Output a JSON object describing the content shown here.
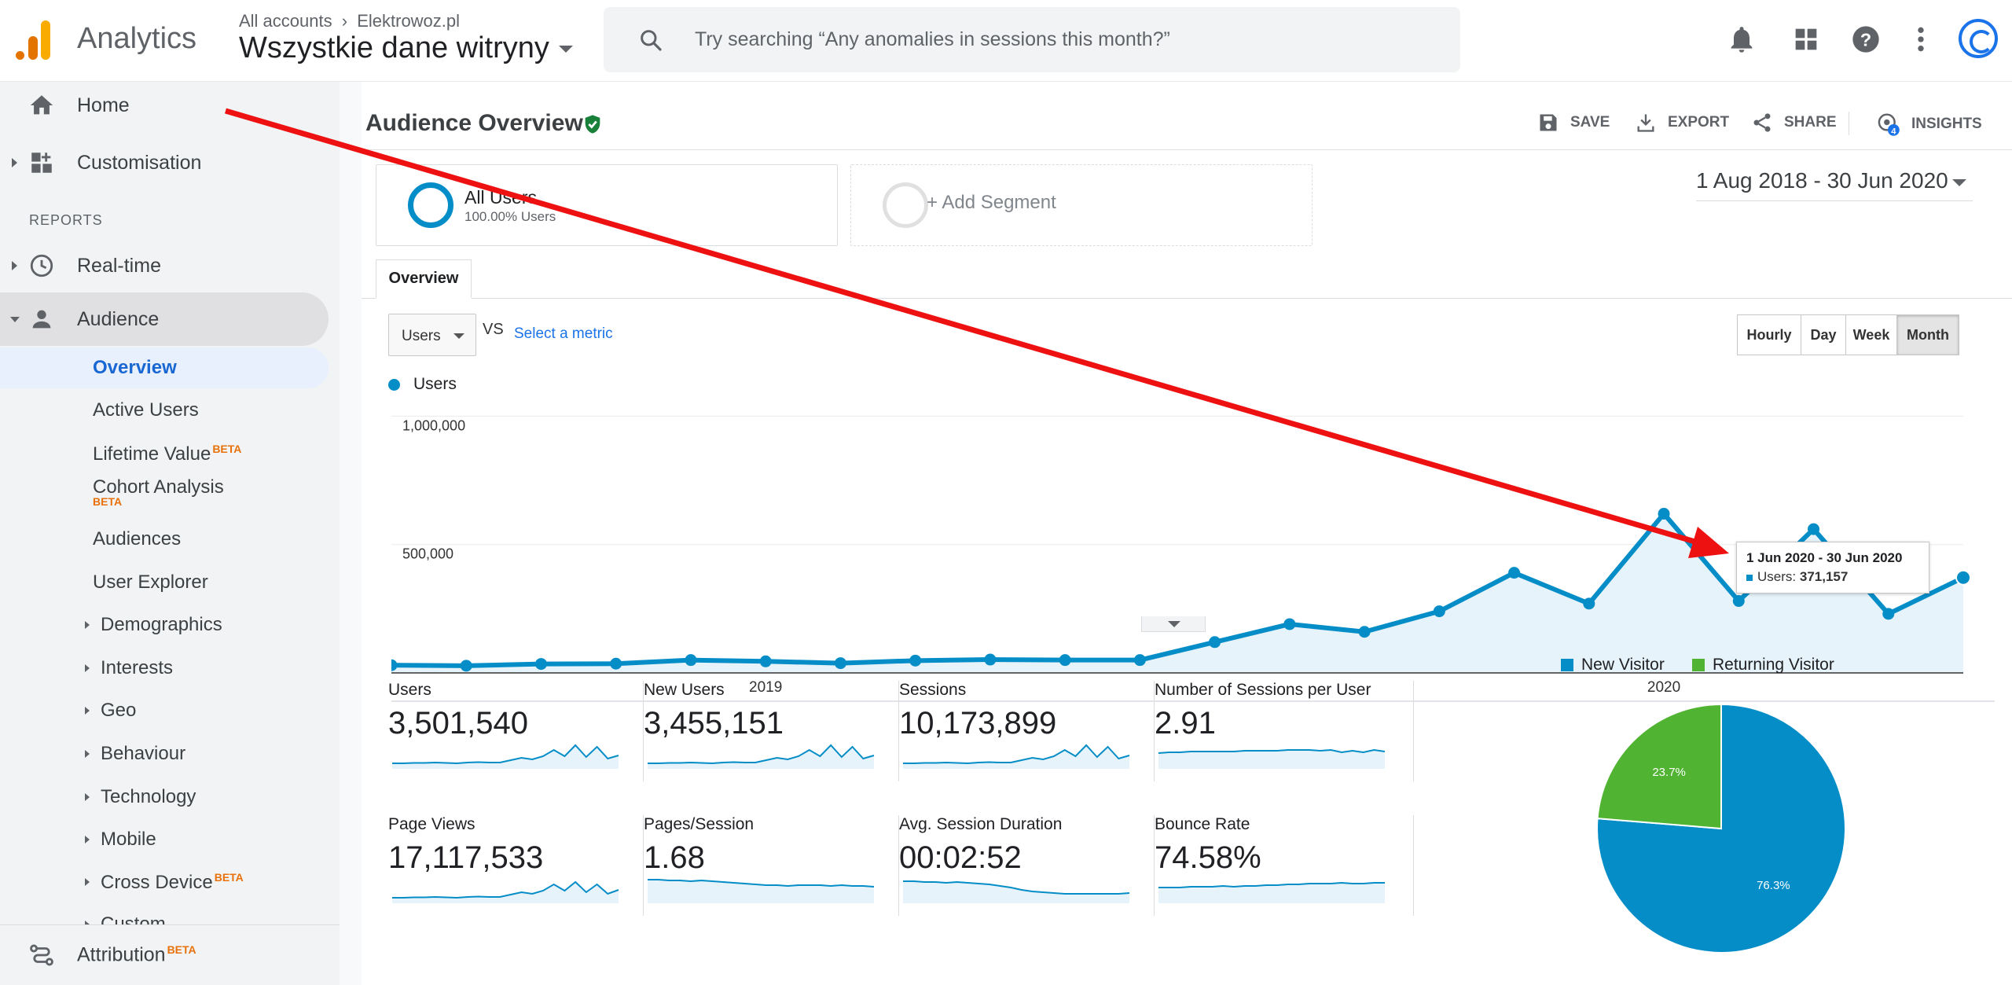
{
  "header": {
    "app_name": "Analytics",
    "breadcrumb_account": "All accounts",
    "breadcrumb_property": "Elektrowoz.pl",
    "view_name": "Wszystkie dane witryny",
    "search_placeholder": "Try searching “Any anomalies in sessions this month?”",
    "icons": [
      "bell-icon",
      "apps-grid-icon",
      "help-icon",
      "more-vert-icon",
      "account-avatar"
    ]
  },
  "sidebar": {
    "home": "Home",
    "customisation": "Customisation",
    "reports_header": "REPORTS",
    "realtime": "Real-time",
    "audience": "Audience",
    "audience_items": [
      {
        "label": "Overview"
      },
      {
        "label": "Active Users"
      },
      {
        "label": "Lifetime Value",
        "badge": "BETA"
      },
      {
        "label": "Cohort Analysis",
        "badge": "BETA"
      },
      {
        "label": "Audiences"
      },
      {
        "label": "User Explorer"
      },
      {
        "label": "Demographics"
      },
      {
        "label": "Interests"
      },
      {
        "label": "Geo"
      },
      {
        "label": "Behaviour"
      },
      {
        "label": "Technology"
      },
      {
        "label": "Mobile"
      },
      {
        "label": "Cross Device",
        "badge": "BETA"
      },
      {
        "label": "Custom"
      }
    ],
    "attribution": "Attribution",
    "attribution_badge": "BETA"
  },
  "report": {
    "title": "Audience Overview",
    "actions": {
      "save": "SAVE",
      "export": "EXPORT",
      "share": "SHARE",
      "insights": "INSIGHTS",
      "insights_count": "4"
    },
    "segments": [
      {
        "name": "All Users",
        "detail": "100.00% Users"
      },
      {
        "name": "+ Add Segment"
      }
    ],
    "date_range": "1 Aug 2018 - 30 Jun 2020",
    "tab": "Overview",
    "metric_select": "Users",
    "vs": "VS",
    "select_metric": "Select a metric",
    "granularity": [
      "Hourly",
      "Day",
      "Week",
      "Month"
    ],
    "granularity_selected": "Month",
    "tooltip": {
      "period": "1 Jun 2020 - 30 Jun 2020",
      "metric": "Users:",
      "value": "371,157"
    }
  },
  "chart_data": {
    "type": "line",
    "series": [
      {
        "name": "Users",
        "color": "#058dc7",
        "values": [
          30000,
          28000,
          35000,
          36000,
          50000,
          45000,
          38000,
          48000,
          52000,
          50000,
          50000,
          120000,
          190000,
          160000,
          240000,
          390000,
          270000,
          620000,
          280000,
          560000,
          230000,
          371157
        ]
      }
    ],
    "x_labels": [
      {
        "label": "2019",
        "index": 5
      },
      {
        "label": "2020",
        "index": 17
      }
    ],
    "y_ticks": [
      "1,000,000",
      "500,000"
    ],
    "ylim": [
      0,
      1000000
    ],
    "legend": "top-left"
  },
  "kpis": [
    {
      "name": "Users",
      "value": "3,501,540",
      "spark": [
        5,
        5,
        5.5,
        5.5,
        6,
        5.5,
        5,
        6,
        6.5,
        6,
        6,
        9,
        12,
        10,
        14,
        22,
        14,
        28,
        13,
        26,
        11,
        15
      ]
    },
    {
      "name": "New Users",
      "value": "3,455,151",
      "spark": [
        5,
        5,
        5.5,
        5.5,
        6,
        5.5,
        5,
        6,
        6.5,
        6,
        6,
        9,
        12,
        10,
        14,
        22,
        14,
        28,
        13,
        26,
        11,
        15
      ]
    },
    {
      "name": "Sessions",
      "value": "10,173,899",
      "spark": [
        5,
        5,
        5.5,
        5.5,
        6,
        5.5,
        5,
        6,
        6.5,
        6,
        6,
        9,
        12,
        10,
        14,
        22,
        14,
        28,
        13,
        26,
        11,
        15
      ]
    },
    {
      "name": "Number of Sessions per User",
      "value": "2.91",
      "spark": [
        18,
        19,
        19,
        20,
        20,
        20,
        20,
        20,
        21,
        21,
        21,
        21,
        22,
        22,
        22,
        21,
        22,
        19,
        21,
        19,
        22,
        20
      ]
    },
    {
      "name": "Page Views",
      "value": "17,117,533",
      "spark": [
        5,
        5,
        5.5,
        5.5,
        6,
        5.5,
        5,
        6,
        6.5,
        6,
        6,
        9,
        12,
        10,
        14,
        22,
        14,
        25,
        12,
        22,
        10,
        15
      ]
    },
    {
      "name": "Pages/Session",
      "value": "1.68",
      "spark": [
        28,
        28,
        27,
        27,
        26,
        27,
        26,
        25,
        24,
        23,
        22,
        21,
        21,
        20,
        21,
        21,
        21,
        20,
        21,
        20,
        20,
        19
      ]
    },
    {
      "name": "Avg. Session Duration",
      "value": "00:02:52",
      "spark": [
        26,
        26,
        25,
        25,
        24,
        25,
        24,
        23,
        22,
        20,
        18,
        15,
        13,
        12,
        11,
        10,
        10,
        10,
        10,
        10,
        10,
        11
      ]
    },
    {
      "name": "Bounce Rate",
      "value": "74.58%",
      "spark": [
        18,
        18,
        18,
        19,
        19,
        19,
        20,
        19,
        20,
        20,
        21,
        21,
        22,
        22,
        23,
        23,
        23,
        24,
        23,
        23,
        24,
        24
      ]
    }
  ],
  "pie": {
    "legend": [
      {
        "label": "New Visitor",
        "color": "#058dc7"
      },
      {
        "label": "Returning Visitor",
        "color": "#50b432"
      }
    ],
    "values": [
      76.3,
      23.7
    ],
    "labels": [
      "76.3%",
      "23.7%"
    ]
  },
  "annotation": {
    "color": "#ee1111"
  }
}
